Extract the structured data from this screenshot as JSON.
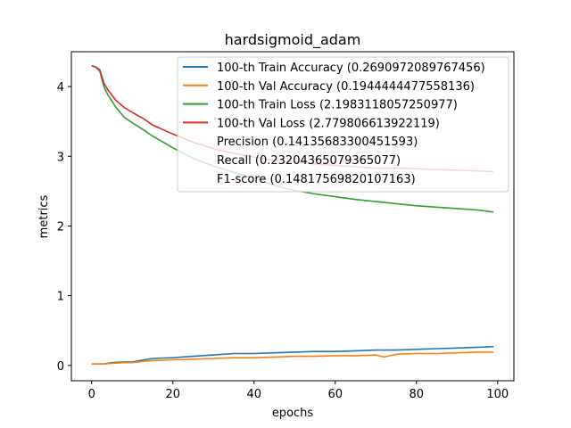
{
  "chart_data": {
    "type": "line",
    "title": "hardsigmoid_adam",
    "xlabel": "epochs",
    "ylabel": "metrics",
    "xlim": [
      -5,
      104
    ],
    "ylim": [
      -0.22,
      4.5
    ],
    "xticks": [
      0,
      20,
      40,
      60,
      80,
      100
    ],
    "yticks": [
      0,
      1,
      2,
      3,
      4
    ],
    "grid": false,
    "legend_position": "top-right",
    "series": [
      {
        "name": "100-th Train Accuracy (0.2690972089767456)",
        "color": "#1f77b4",
        "x": [
          0,
          3,
          5,
          8,
          10,
          13,
          15,
          20,
          25,
          30,
          35,
          40,
          45,
          50,
          55,
          60,
          65,
          70,
          75,
          80,
          85,
          90,
          95,
          99
        ],
        "y": [
          0.02,
          0.02,
          0.04,
          0.05,
          0.05,
          0.08,
          0.1,
          0.11,
          0.13,
          0.15,
          0.17,
          0.17,
          0.18,
          0.19,
          0.2,
          0.2,
          0.21,
          0.22,
          0.22,
          0.23,
          0.24,
          0.25,
          0.26,
          0.27
        ]
      },
      {
        "name": "100-th Val Accuracy (0.1944444477558136)",
        "color": "#ff7f0e",
        "x": [
          0,
          3,
          5,
          8,
          10,
          13,
          15,
          20,
          25,
          30,
          35,
          40,
          45,
          50,
          55,
          60,
          65,
          70,
          72,
          75,
          80,
          85,
          90,
          95,
          99
        ],
        "y": [
          0.02,
          0.02,
          0.03,
          0.04,
          0.04,
          0.06,
          0.07,
          0.08,
          0.09,
          0.1,
          0.11,
          0.11,
          0.12,
          0.13,
          0.13,
          0.14,
          0.14,
          0.15,
          0.12,
          0.16,
          0.17,
          0.17,
          0.18,
          0.19,
          0.19
        ]
      },
      {
        "name": "100-th Train Loss (2.1983118057250977)",
        "color": "#2ca02c",
        "x": [
          0,
          1,
          2,
          3,
          4,
          6,
          8,
          10,
          13,
          15,
          18,
          20,
          25,
          30,
          35,
          40,
          45,
          50,
          55,
          60,
          65,
          70,
          75,
          80,
          85,
          90,
          95,
          99
        ],
        "y": [
          4.3,
          4.28,
          4.22,
          4.0,
          3.88,
          3.7,
          3.56,
          3.48,
          3.37,
          3.29,
          3.19,
          3.12,
          2.97,
          2.86,
          2.77,
          2.69,
          2.58,
          2.51,
          2.46,
          2.42,
          2.38,
          2.35,
          2.32,
          2.29,
          2.27,
          2.25,
          2.23,
          2.2
        ]
      },
      {
        "name": "100-th Val Loss (2.779806613922119)",
        "color": "#d62728",
        "x": [
          0,
          1,
          2,
          3,
          4,
          6,
          8,
          10,
          13,
          15,
          18,
          20,
          25,
          30,
          35,
          40,
          45,
          50,
          55,
          60,
          65,
          70,
          75,
          80,
          85,
          90,
          95,
          99
        ],
        "y": [
          4.3,
          4.28,
          4.24,
          4.05,
          3.95,
          3.8,
          3.7,
          3.63,
          3.53,
          3.45,
          3.37,
          3.32,
          3.2,
          3.11,
          3.04,
          2.99,
          2.94,
          2.92,
          2.89,
          2.87,
          2.85,
          2.83,
          2.83,
          2.82,
          2.81,
          2.8,
          2.79,
          2.78
        ]
      }
    ],
    "legend_extra": [
      "Precision (0.14135683300451593)",
      "Recall (0.23204365079365077)",
      "F1-score (0.14817569820107163)"
    ]
  }
}
